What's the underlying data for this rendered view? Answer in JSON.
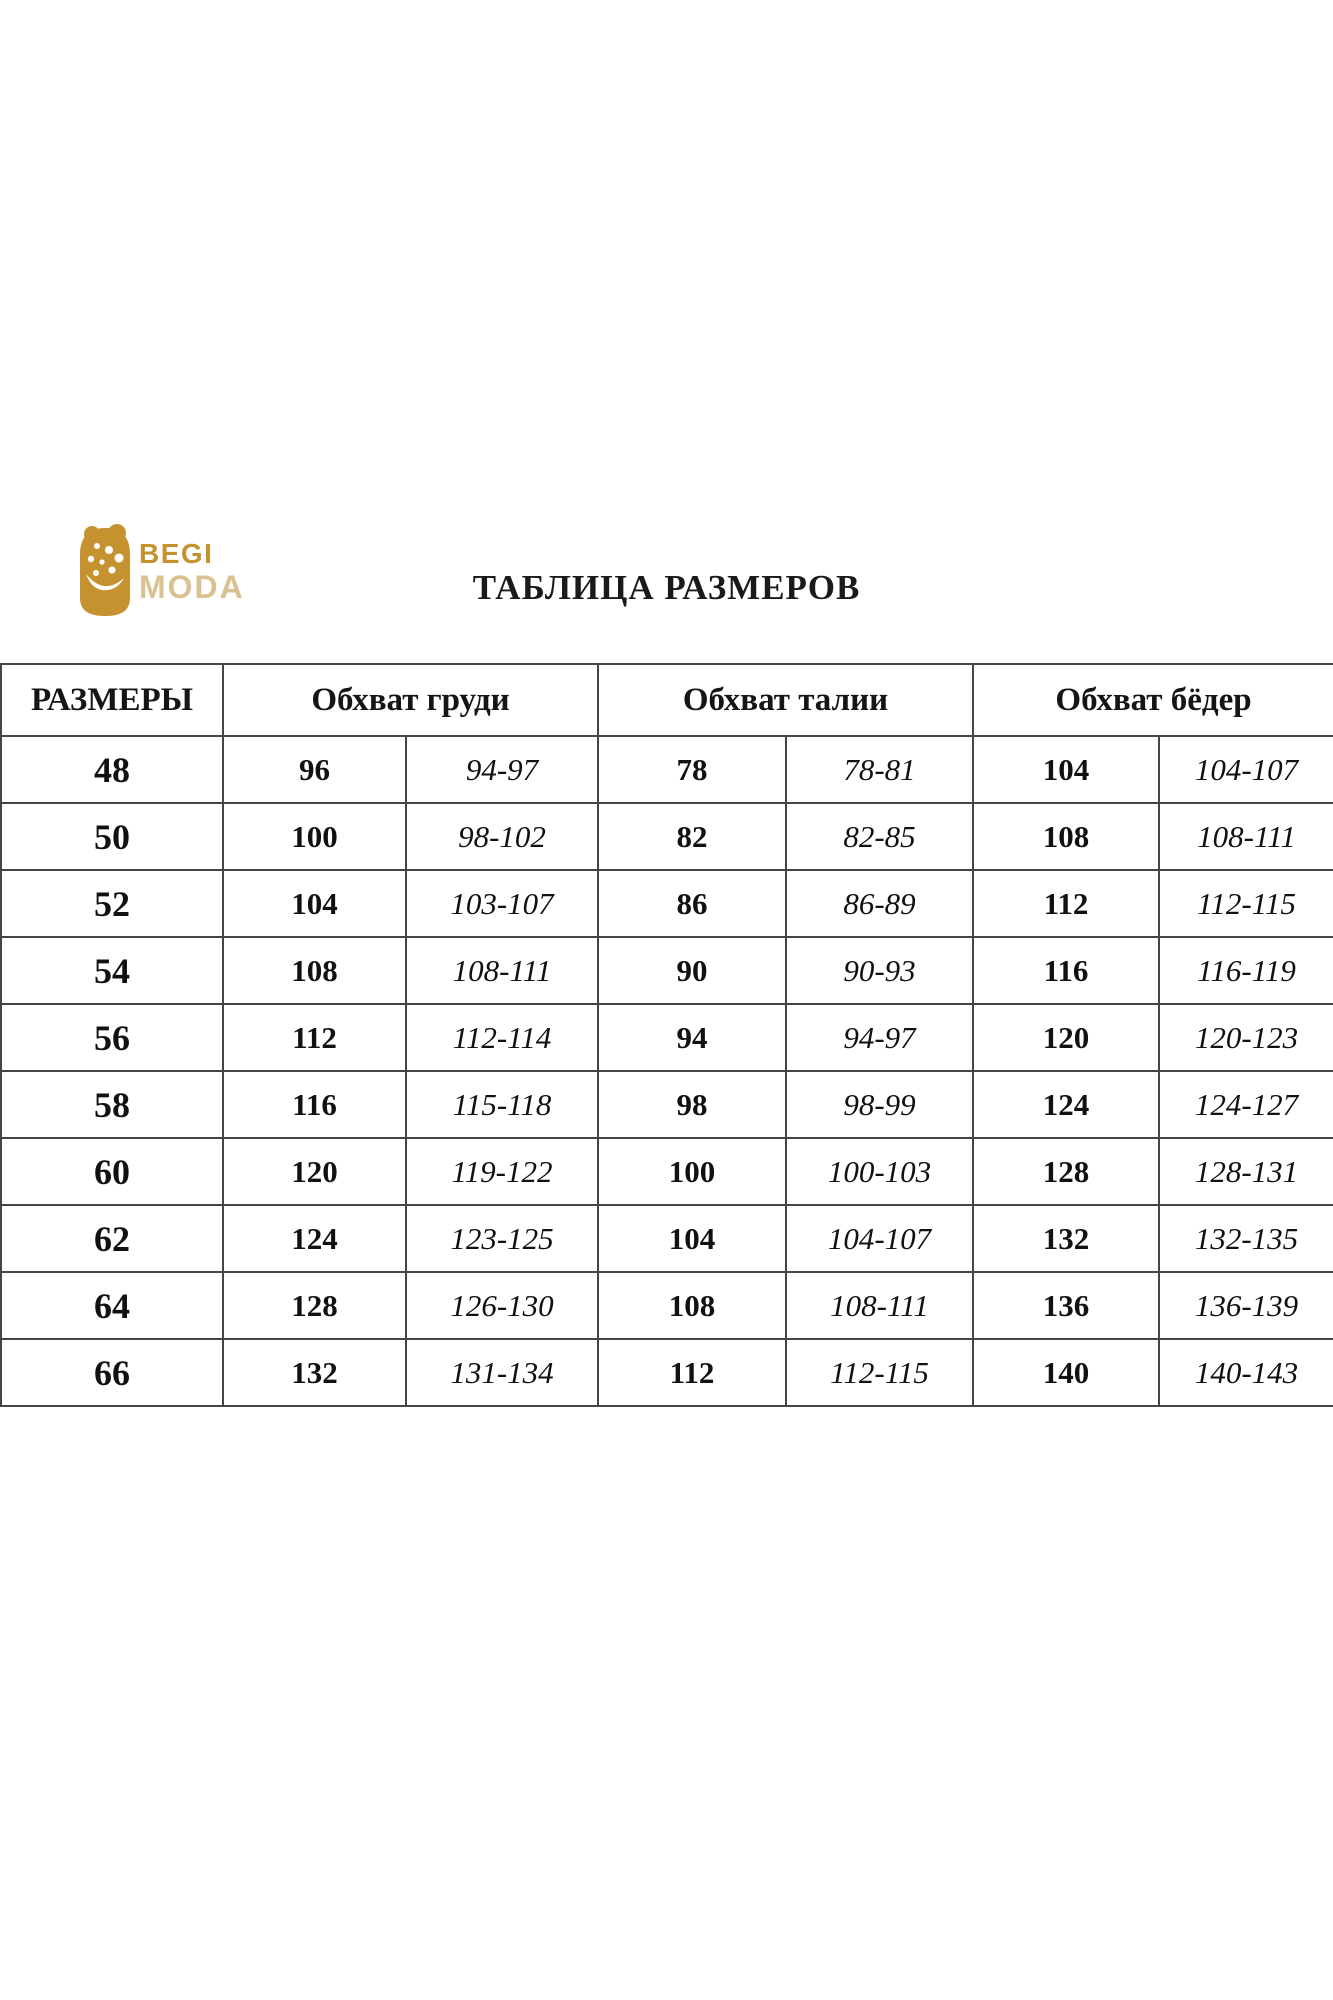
{
  "logo": {
    "brand_top": "BEGI",
    "brand_bottom": "MODA",
    "color_primary": "#c6922f",
    "color_secondary": "#d9c191"
  },
  "title": "ТАБЛИЦА РАЗМЕРОВ",
  "table": {
    "columns": [
      "РАЗМЕРЫ",
      "Обхват груди",
      "Обхват талии",
      "Обхват бёдер"
    ],
    "rows": [
      [
        "48",
        "96",
        "94-97",
        "78",
        "78-81",
        "104",
        "104-107"
      ],
      [
        "50",
        "100",
        "98-102",
        "82",
        "82-85",
        "108",
        "108-111"
      ],
      [
        "52",
        "104",
        "103-107",
        "86",
        "86-89",
        "112",
        "112-115"
      ],
      [
        "54",
        "108",
        "108-111",
        "90",
        "90-93",
        "116",
        "116-119"
      ],
      [
        "56",
        "112",
        "112-114",
        "94",
        "94-97",
        "120",
        "120-123"
      ],
      [
        "58",
        "116",
        "115-118",
        "98",
        "98-99",
        "124",
        "124-127"
      ],
      [
        "60",
        "120",
        "119-122",
        "100",
        "100-103",
        "128",
        "128-131"
      ],
      [
        "62",
        "124",
        "123-125",
        "104",
        "104-107",
        "132",
        "132-135"
      ],
      [
        "64",
        "128",
        "126-130",
        "108",
        "108-111",
        "136",
        "136-139"
      ],
      [
        "66",
        "132",
        "131-134",
        "112",
        "112-115",
        "140",
        "140-143"
      ]
    ]
  }
}
